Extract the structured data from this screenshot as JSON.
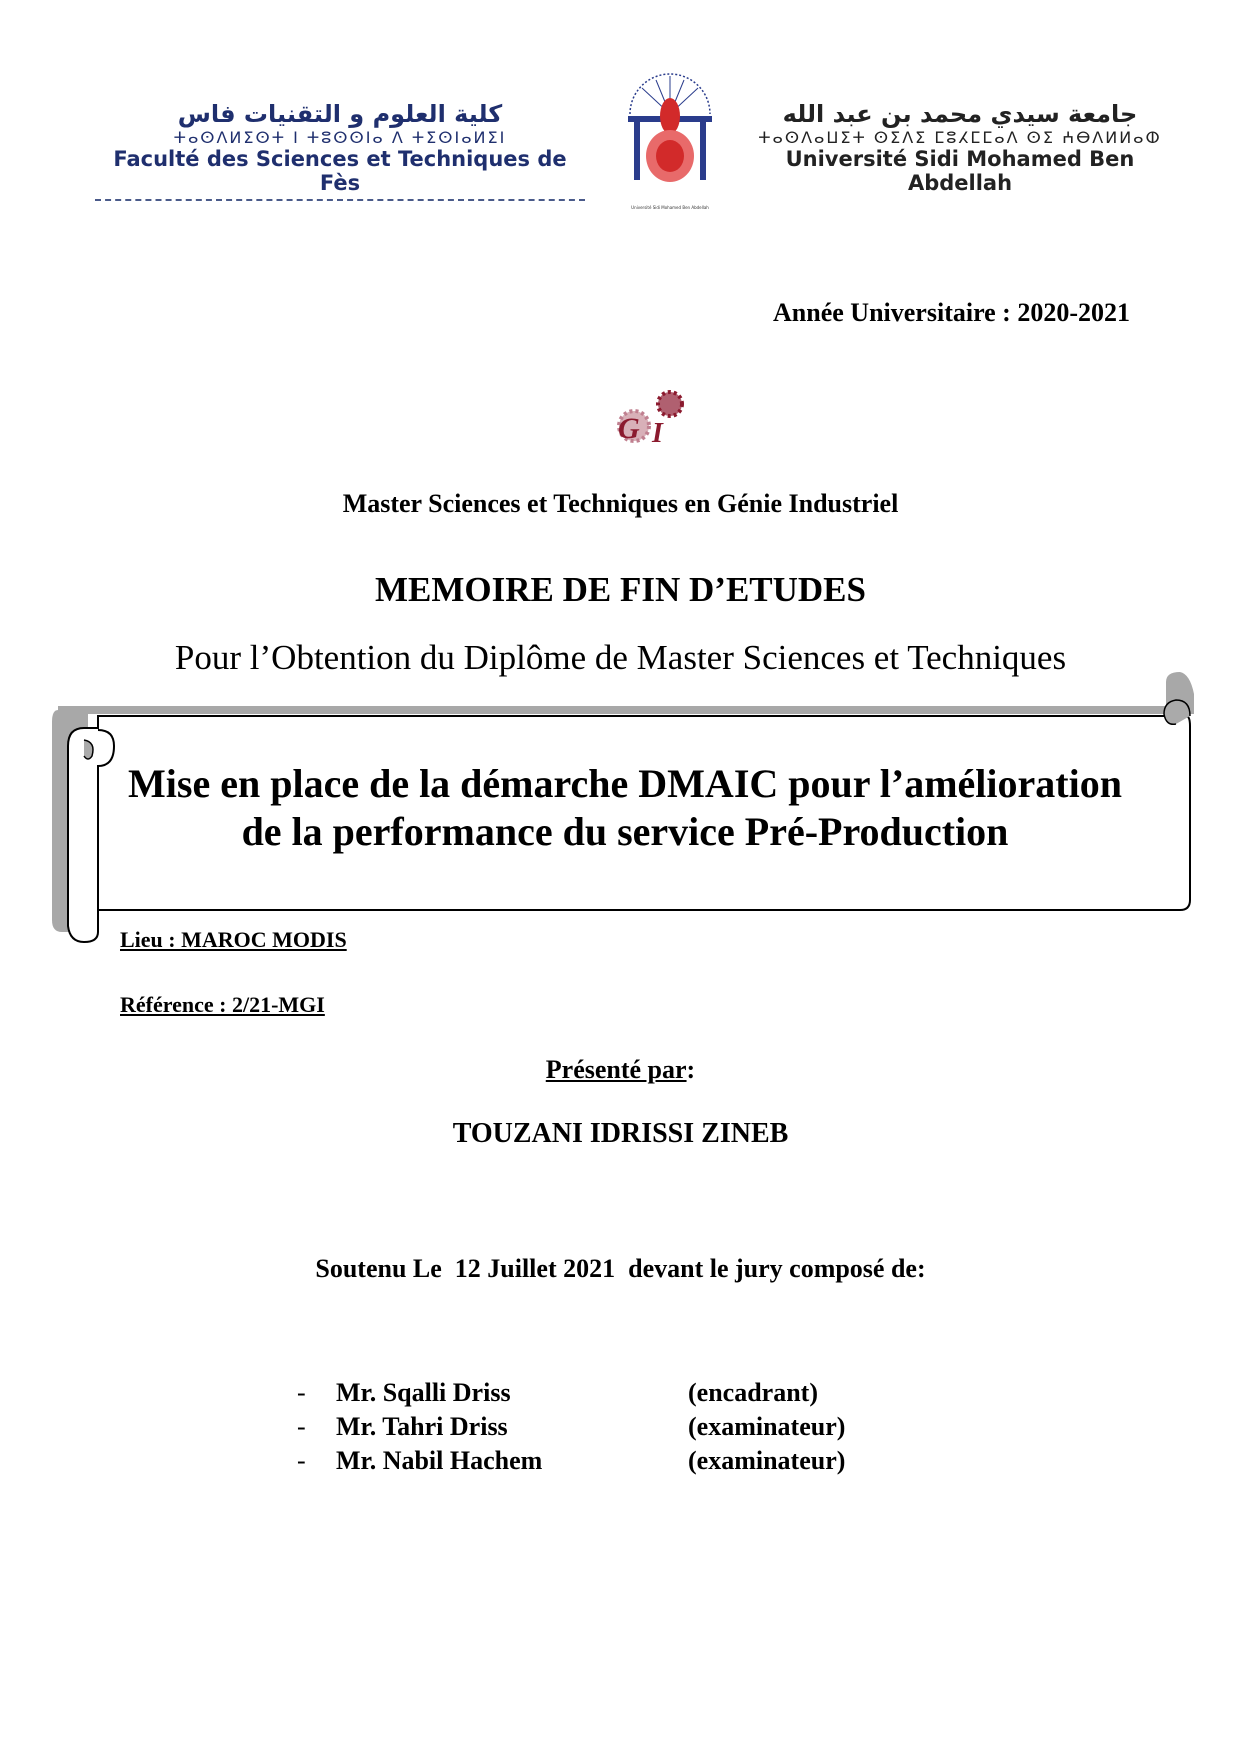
{
  "header": {
    "fst": {
      "arabic": "كلية العلوم و التقنيات فاس",
      "tifinagh": "ⵜⴰⵙⴷⵍⵉⵙⵜ ⵏ ⵜⵓⵙⵙⵏⴰ ⴷ ⵜⵉⵙⵏⴰⵍⵉⵏ",
      "french": "Faculté des Sciences et Techniques de Fès"
    },
    "university_logo_text": "Université Sidi Mohamed Ben Abdellah",
    "usmba": {
      "arabic": "جامعة سيدي محمد بن عبد الله",
      "tifinagh": "ⵜⴰⵙⴷⴰⵡⵉⵜ ⵙⵉⴷⵉ ⵎⵓⵃⵎⵎⴰⴷ ⵙⵉ ⵄⴱⴷⵍⵍⴰⵀ",
      "french": "Université Sidi Mohamed Ben Abdellah"
    },
    "colors": {
      "fst_blue": "#1f2f6e",
      "seal_red": "#d22a2a",
      "gi_maroon": "#8b1a2e"
    }
  },
  "academic_year": "Année Universitaire : 2020-2021",
  "gi_logo": {
    "letters": "GI"
  },
  "program": "Master Sciences et Techniques en Génie Industriel",
  "doc_type": "MEMOIRE DE FIN D’ETUDES",
  "purpose": "Pour l’Obtention du Diplôme de Master Sciences et Techniques",
  "title": {
    "line1": "Mise en place de la démarche DMAIC pour l’amélioration",
    "line2": "de la performance du service Pré-Production"
  },
  "lieu": "Lieu : MAROC MODIS",
  "reference": "Référence : 2/21-MGI",
  "presented_by_label": "Présenté par",
  "presented_by_colon": ":",
  "author": "TOUZANI IDRISSI ZINEB",
  "defense": "Soutenu Le  12 Juillet 2021  devant le jury composé de:",
  "jury": [
    {
      "dash": "-",
      "name": "Mr. Sqalli Driss",
      "role": "(encadrant)"
    },
    {
      "dash": "-",
      "name": "Mr. Tahri Driss",
      "role": "(examinateur)"
    },
    {
      "dash": "-",
      "name": "Mr. Nabil Hachem",
      "role": "(examinateur)"
    }
  ]
}
